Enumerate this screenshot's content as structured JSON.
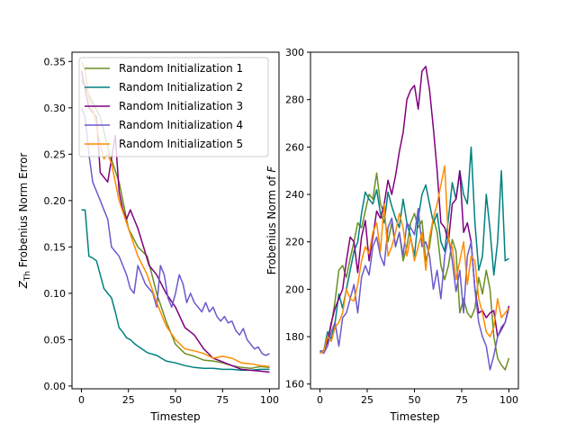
{
  "chart_data": [
    {
      "type": "line",
      "title": "",
      "xlabel": "Timestep",
      "ylabel": "Z_Th Frobenius Norm Error",
      "ylabel_main": "Z",
      "ylabel_sub": "Th",
      "ylabel_rest": " Frobenius Norm Error",
      "xlim": [
        -5,
        105
      ],
      "ylim": [
        -0.003,
        0.36
      ],
      "xticks": [
        0,
        25,
        50,
        75,
        100
      ],
      "xtick_labels": [
        "0",
        "25",
        "50",
        "75",
        "100"
      ],
      "yticks": [
        0.0,
        0.05,
        0.1,
        0.15,
        0.2,
        0.25,
        0.3,
        0.35
      ],
      "ytick_labels": [
        "0.00",
        "0.05",
        "0.10",
        "0.15",
        "0.20",
        "0.25",
        "0.30",
        "0.35"
      ],
      "grid": false,
      "legend_position": "upper-right",
      "series": [
        {
          "name": "Random Initialization 1",
          "color": "#6b8e23",
          "x": [
            0,
            5,
            10,
            15,
            20,
            25,
            30,
            35,
            40,
            45,
            50,
            55,
            60,
            65,
            70,
            75,
            80,
            85,
            90,
            95,
            100
          ],
          "y": [
            0.33,
            0.31,
            0.29,
            0.25,
            0.22,
            0.17,
            0.15,
            0.14,
            0.1,
            0.07,
            0.045,
            0.035,
            0.032,
            0.028,
            0.027,
            0.025,
            0.022,
            0.02,
            0.019,
            0.021,
            0.02
          ]
        },
        {
          "name": "Random Initialization 2",
          "color": "#008080",
          "x": [
            0,
            2,
            4,
            6,
            8,
            10,
            12,
            14,
            16,
            18,
            20,
            22,
            24,
            26,
            28,
            30,
            35,
            40,
            45,
            50,
            55,
            60,
            65,
            70,
            75,
            80,
            85,
            90,
            95,
            100
          ],
          "y": [
            0.19,
            0.19,
            0.14,
            0.138,
            0.135,
            0.12,
            0.105,
            0.1,
            0.095,
            0.08,
            0.063,
            0.058,
            0.052,
            0.05,
            0.046,
            0.043,
            0.036,
            0.033,
            0.027,
            0.025,
            0.022,
            0.02,
            0.019,
            0.019,
            0.018,
            0.018,
            0.017,
            0.017,
            0.018,
            0.018
          ]
        },
        {
          "name": "Random Initialization 3",
          "color": "#800080",
          "x": [
            0,
            4,
            8,
            10,
            14,
            18,
            20,
            22,
            24,
            26,
            28,
            30,
            33,
            36,
            40,
            45,
            50,
            55,
            60,
            65,
            70,
            75,
            80,
            85,
            90,
            95,
            100
          ],
          "y": [
            0.34,
            0.3,
            0.29,
            0.23,
            0.22,
            0.27,
            0.21,
            0.19,
            0.18,
            0.19,
            0.18,
            0.17,
            0.15,
            0.13,
            0.12,
            0.1,
            0.085,
            0.063,
            0.055,
            0.04,
            0.03,
            0.026,
            0.022,
            0.018,
            0.017,
            0.016,
            0.015
          ]
        },
        {
          "name": "Random Initialization 4",
          "color": "#6a5acd",
          "x": [
            0,
            2,
            4,
            6,
            8,
            10,
            12,
            14,
            16,
            18,
            20,
            22,
            24,
            26,
            28,
            30,
            34,
            38,
            40,
            42,
            44,
            46,
            48,
            50,
            52,
            54,
            56,
            58,
            60,
            62,
            64,
            66,
            68,
            70,
            72,
            74,
            76,
            78,
            80,
            82,
            84,
            86,
            88,
            90,
            92,
            94,
            96,
            98,
            100
          ],
          "y": [
            0.3,
            0.29,
            0.25,
            0.22,
            0.21,
            0.2,
            0.19,
            0.18,
            0.15,
            0.145,
            0.14,
            0.13,
            0.12,
            0.105,
            0.1,
            0.13,
            0.11,
            0.1,
            0.085,
            0.13,
            0.12,
            0.095,
            0.085,
            0.1,
            0.12,
            0.11,
            0.09,
            0.1,
            0.09,
            0.085,
            0.08,
            0.09,
            0.08,
            0.085,
            0.075,
            0.07,
            0.075,
            0.068,
            0.07,
            0.06,
            0.055,
            0.062,
            0.05,
            0.045,
            0.04,
            0.042,
            0.035,
            0.033,
            0.035
          ]
        },
        {
          "name": "Random Initialization 5",
          "color": "#ff8c00",
          "x": [
            0,
            2,
            4,
            6,
            8,
            10,
            12,
            14,
            16,
            18,
            20,
            25,
            30,
            35,
            40,
            45,
            50,
            55,
            60,
            65,
            70,
            75,
            80,
            85,
            90,
            95,
            100
          ],
          "y": [
            0.35,
            0.34,
            0.31,
            0.3,
            0.28,
            0.26,
            0.245,
            0.25,
            0.24,
            0.22,
            0.2,
            0.17,
            0.14,
            0.12,
            0.09,
            0.065,
            0.05,
            0.04,
            0.038,
            0.035,
            0.03,
            0.032,
            0.03,
            0.025,
            0.024,
            0.022,
            0.021
          ]
        }
      ]
    },
    {
      "type": "line",
      "title": "",
      "xlabel": "Timestep",
      "ylabel": "Frobenius Norm of F",
      "ylabel_main": "Frobenius Norm of ",
      "ylabel_italic": "F",
      "xlim": [
        -5,
        105
      ],
      "ylim": [
        158,
        300
      ],
      "xticks": [
        0,
        25,
        50,
        75,
        100
      ],
      "xtick_labels": [
        "0",
        "25",
        "50",
        "75",
        "100"
      ],
      "yticks": [
        160,
        180,
        200,
        220,
        240,
        260,
        280,
        300
      ],
      "ytick_labels": [
        "160",
        "180",
        "200",
        "220",
        "240",
        "260",
        "280",
        "300"
      ],
      "grid": false,
      "series": [
        {
          "name": "Random Initialization 1",
          "color": "#6b8e23",
          "x": [
            0,
            2,
            4,
            6,
            8,
            10,
            12,
            14,
            16,
            18,
            20,
            22,
            24,
            26,
            28,
            30,
            32,
            34,
            36,
            38,
            40,
            42,
            44,
            46,
            48,
            50,
            52,
            54,
            56,
            58,
            60,
            62,
            64,
            66,
            68,
            70,
            72,
            74,
            76,
            78,
            80,
            82,
            84,
            86,
            88,
            90,
            92,
            94,
            96,
            98,
            100
          ],
          "y": [
            173,
            174,
            178,
            185,
            195,
            208,
            210,
            205,
            213,
            220,
            228,
            226,
            233,
            240,
            238,
            249,
            236,
            232,
            220,
            228,
            218,
            224,
            212,
            218,
            228,
            232,
            226,
            229,
            212,
            218,
            230,
            224,
            210,
            204,
            210,
            221,
            216,
            190,
            196,
            190,
            188,
            192,
            205,
            198,
            208,
            200,
            180,
            171,
            168,
            166,
            171
          ]
        },
        {
          "name": "Random Initialization 2",
          "color": "#008080",
          "x": [
            0,
            2,
            4,
            6,
            8,
            10,
            12,
            14,
            16,
            18,
            20,
            22,
            24,
            26,
            28,
            30,
            32,
            34,
            36,
            38,
            40,
            42,
            44,
            46,
            48,
            50,
            52,
            54,
            56,
            58,
            60,
            62,
            64,
            66,
            68,
            70,
            72,
            74,
            76,
            78,
            80,
            82,
            84,
            86,
            88,
            90,
            92,
            94,
            96,
            98,
            100
          ],
          "y": [
            174,
            174,
            182,
            179,
            186,
            198,
            192,
            200,
            208,
            216,
            220,
            232,
            241,
            238,
            236,
            242,
            232,
            228,
            241,
            235,
            230,
            226,
            238,
            228,
            222,
            214,
            230,
            240,
            244,
            236,
            228,
            232,
            220,
            216,
            230,
            245,
            238,
            250,
            240,
            236,
            260,
            228,
            208,
            214,
            240,
            225,
            206,
            220,
            250,
            212,
            213
          ]
        },
        {
          "name": "Random Initialization 3",
          "color": "#800080",
          "x": [
            0,
            2,
            4,
            6,
            8,
            10,
            12,
            14,
            16,
            18,
            20,
            22,
            24,
            26,
            28,
            30,
            32,
            34,
            36,
            38,
            40,
            42,
            44,
            46,
            48,
            50,
            52,
            54,
            56,
            58,
            60,
            62,
            64,
            66,
            68,
            70,
            72,
            74,
            76,
            78,
            80,
            82,
            84,
            86,
            88,
            90,
            92,
            94,
            96,
            98,
            100
          ],
          "y": [
            173,
            174,
            178,
            186,
            192,
            196,
            200,
            212,
            222,
            220,
            207,
            222,
            229,
            212,
            222,
            233,
            230,
            236,
            246,
            240,
            248,
            258,
            266,
            280,
            284,
            286,
            276,
            292,
            294,
            284,
            268,
            250,
            228,
            226,
            220,
            236,
            238,
            250,
            224,
            228,
            220,
            200,
            190,
            191,
            188,
            190,
            191,
            180,
            183,
            186,
            193
          ]
        },
        {
          "name": "Random Initialization 4",
          "color": "#6a5acd",
          "x": [
            0,
            2,
            4,
            6,
            8,
            10,
            12,
            14,
            16,
            18,
            20,
            22,
            24,
            26,
            28,
            30,
            32,
            34,
            36,
            38,
            40,
            42,
            44,
            46,
            48,
            50,
            52,
            54,
            56,
            58,
            60,
            62,
            64,
            66,
            68,
            70,
            72,
            74,
            76,
            78,
            80,
            82,
            84,
            86,
            88,
            90,
            92,
            94,
            96,
            98,
            100
          ],
          "y": [
            174,
            173,
            176,
            182,
            186,
            176,
            188,
            190,
            196,
            202,
            190,
            205,
            210,
            206,
            218,
            222,
            214,
            210,
            226,
            230,
            218,
            224,
            214,
            228,
            226,
            223,
            234,
            218,
            220,
            214,
            200,
            208,
            196,
            214,
            222,
            212,
            199,
            208,
            190,
            214,
            220,
            200,
            186,
            180,
            176,
            166,
            172,
            180,
            184,
            186,
            192
          ]
        },
        {
          "name": "Random Initialization 5",
          "color": "#ff8c00",
          "x": [
            0,
            2,
            4,
            6,
            8,
            10,
            12,
            14,
            16,
            18,
            20,
            22,
            24,
            26,
            28,
            30,
            32,
            34,
            36,
            38,
            40,
            42,
            44,
            46,
            48,
            50,
            52,
            54,
            56,
            58,
            60,
            62,
            64,
            66,
            68,
            70,
            72,
            74,
            76,
            78,
            80,
            82,
            84,
            86,
            88,
            90,
            92,
            94,
            96,
            98,
            100
          ],
          "y": [
            173,
            174,
            180,
            178,
            184,
            186,
            190,
            200,
            196,
            195,
            202,
            212,
            218,
            215,
            224,
            228,
            216,
            236,
            214,
            218,
            224,
            232,
            226,
            214,
            222,
            212,
            218,
            224,
            208,
            222,
            230,
            236,
            244,
            252,
            220,
            218,
            204,
            212,
            220,
            202,
            214,
            212,
            196,
            190,
            182,
            180,
            184,
            196,
            188,
            190,
            192
          ]
        }
      ]
    }
  ]
}
